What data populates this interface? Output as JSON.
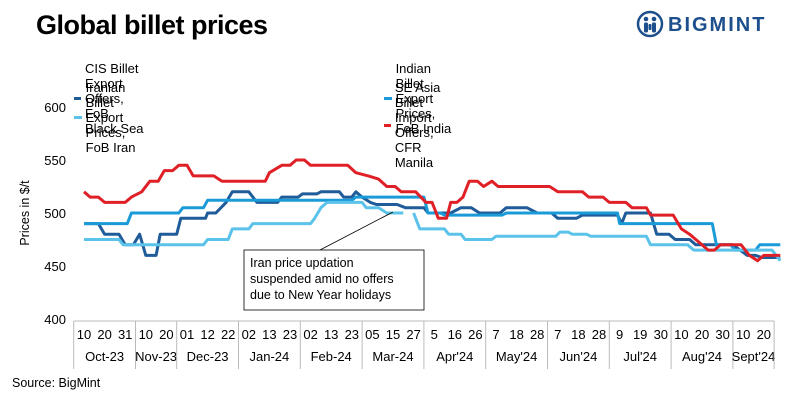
{
  "title": "Global billet prices",
  "brand": {
    "name": "BIGMINT",
    "icon": "bigmint-logo-icon",
    "color": "#1d4f8c"
  },
  "source": "Source: BigMint",
  "annotation": {
    "lines": [
      "Iran price updation",
      "suspended  amid no offers",
      "due to New Year holidays"
    ]
  },
  "chart_data": {
    "type": "line",
    "title": "Global billet prices",
    "ylabel": "Prices in $/t",
    "ylim": [
      400,
      600
    ],
    "yticks": [
      400,
      450,
      500,
      550,
      600
    ],
    "grid": false,
    "legend_position": "top",
    "x_tick_labels": [
      "10",
      "20",
      "31",
      "10",
      "20",
      "01",
      "12",
      "22",
      "02",
      "13",
      "23",
      "02",
      "13",
      "23",
      "05",
      "15",
      "27",
      "5",
      "16",
      "26",
      "7",
      "18",
      "28",
      "7",
      "18",
      "28",
      "9",
      "19",
      "30",
      "10",
      "20",
      "30",
      "10",
      "20"
    ],
    "months": [
      {
        "label": "Oct-23",
        "from": 0,
        "to": 3
      },
      {
        "label": "Nov-23",
        "from": 3,
        "to": 5
      },
      {
        "label": "Dec-23",
        "from": 5,
        "to": 8
      },
      {
        "label": "Jan-24",
        "from": 8,
        "to": 11
      },
      {
        "label": "Feb-24",
        "from": 11,
        "to": 14
      },
      {
        "label": "Mar-24",
        "from": 14,
        "to": 17
      },
      {
        "label": "Apr'24",
        "from": 17,
        "to": 20
      },
      {
        "label": "May'24",
        "from": 20,
        "to": 23
      },
      {
        "label": "Jun'24",
        "from": 23,
        "to": 26
      },
      {
        "label": "Jul'24",
        "from": 26,
        "to": 29
      },
      {
        "label": "Aug'24",
        "from": 29,
        "to": 32
      },
      {
        "label": "Sept'24",
        "from": 32,
        "to": 34
      }
    ],
    "series": [
      {
        "name": "CIS Billet Export Offers, FoB Black Sea",
        "color": "#1f5c99",
        "points": [
          [
            0,
            490
          ],
          [
            0.7,
            490
          ],
          [
            1,
            480
          ],
          [
            1.7,
            480
          ],
          [
            2,
            470
          ],
          [
            2.4,
            470
          ],
          [
            2.7,
            480
          ],
          [
            3,
            460
          ],
          [
            3.5,
            460
          ],
          [
            3.7,
            480
          ],
          [
            4.5,
            480
          ],
          [
            4.7,
            495
          ],
          [
            5.9,
            495
          ],
          [
            6,
            500
          ],
          [
            6.4,
            500
          ],
          [
            6.9,
            510
          ],
          [
            7.2,
            520
          ],
          [
            8,
            520
          ],
          [
            8.4,
            510
          ],
          [
            9.4,
            510
          ],
          [
            9.6,
            515
          ],
          [
            10.4,
            515
          ],
          [
            10.6,
            518
          ],
          [
            11.3,
            518
          ],
          [
            11.5,
            520
          ],
          [
            12.4,
            520
          ],
          [
            12.6,
            515
          ],
          [
            13,
            515
          ],
          [
            13.2,
            520
          ],
          [
            13.5,
            515
          ],
          [
            13.9,
            510
          ],
          [
            14.2,
            508
          ],
          [
            15.2,
            508
          ],
          [
            15.6,
            505
          ],
          [
            16.5,
            505
          ],
          [
            16.7,
            500
          ],
          [
            17.5,
            500
          ],
          [
            17.8,
            500
          ],
          [
            18.3,
            505
          ],
          [
            18.8,
            505
          ],
          [
            19.2,
            500
          ],
          [
            20.2,
            500
          ],
          [
            20.5,
            505
          ],
          [
            21.5,
            505
          ],
          [
            22,
            500
          ],
          [
            22.7,
            500
          ],
          [
            23,
            495
          ],
          [
            23.9,
            495
          ],
          [
            24.2,
            498
          ],
          [
            25.9,
            498
          ],
          [
            26.1,
            490
          ],
          [
            26.3,
            500
          ],
          [
            27.5,
            500
          ],
          [
            27.8,
            480
          ],
          [
            28.4,
            480
          ],
          [
            28.7,
            475
          ],
          [
            29.4,
            475
          ],
          [
            29.7,
            470
          ],
          [
            31.5,
            470
          ],
          [
            32.2,
            460
          ],
          [
            32.6,
            460
          ],
          [
            32.9,
            458
          ],
          [
            33.8,
            458
          ]
        ]
      },
      {
        "name": "Indian Billet Export Prices, FoB India",
        "color": "#1a9bd7",
        "points": [
          [
            0,
            490
          ],
          [
            2,
            490
          ],
          [
            2.1,
            490
          ],
          [
            2.3,
            500
          ],
          [
            4.6,
            500
          ],
          [
            4.8,
            505
          ],
          [
            5.8,
            505
          ],
          [
            6,
            512
          ],
          [
            13,
            512
          ],
          [
            13.2,
            515
          ],
          [
            16.5,
            515
          ],
          [
            16.7,
            500
          ],
          [
            17.3,
            500
          ],
          [
            17.5,
            498
          ],
          [
            20.3,
            498
          ],
          [
            20.5,
            500
          ],
          [
            23.5,
            500
          ],
          [
            23.7,
            500
          ],
          [
            25.9,
            500
          ],
          [
            26,
            490
          ],
          [
            29.7,
            490
          ],
          [
            29.9,
            490
          ],
          [
            30.5,
            490
          ],
          [
            30.7,
            470
          ],
          [
            31.4,
            470
          ],
          [
            31.6,
            465
          ],
          [
            32.6,
            465
          ],
          [
            32.8,
            470
          ],
          [
            33.8,
            470
          ]
        ]
      },
      {
        "name": "Iranian Billet Export Prices, FoB Iran",
        "color": "#5bc3ea",
        "points": [
          [
            0,
            475
          ],
          [
            1.7,
            475
          ],
          [
            1.9,
            470
          ],
          [
            4.5,
            470
          ],
          [
            5.8,
            470
          ],
          [
            6,
            475
          ],
          [
            7,
            475
          ],
          [
            7.2,
            485
          ],
          [
            8,
            485
          ],
          [
            8.2,
            490
          ],
          [
            11,
            490
          ],
          [
            11.2,
            495
          ],
          [
            11.5,
            505
          ],
          [
            11.8,
            510
          ],
          [
            13.5,
            510
          ],
          [
            13.7,
            505
          ],
          [
            14.3,
            505
          ],
          [
            14.7,
            500
          ],
          [
            15.5,
            500
          ],
          [
            15.5,
            null
          ],
          [
            16,
            null
          ],
          [
            16,
            500
          ],
          [
            16.3,
            485
          ],
          [
            17.5,
            485
          ],
          [
            17.7,
            480
          ],
          [
            18.3,
            480
          ],
          [
            18.5,
            475
          ],
          [
            19.8,
            475
          ],
          [
            20,
            478
          ],
          [
            22.9,
            478
          ],
          [
            23.1,
            482
          ],
          [
            23.5,
            482
          ],
          [
            23.7,
            480
          ],
          [
            24.4,
            480
          ],
          [
            24.6,
            478
          ],
          [
            27.3,
            478
          ],
          [
            27.5,
            470
          ],
          [
            29.3,
            470
          ],
          [
            29.6,
            465
          ],
          [
            31.8,
            465
          ],
          [
            32.1,
            465
          ],
          [
            33.4,
            465
          ],
          [
            33.8,
            455
          ]
        ]
      },
      {
        "name": "SE Asia Billet Import Offers, CFR Manila",
        "color": "#e02027",
        "points": [
          [
            0,
            520
          ],
          [
            0.3,
            515
          ],
          [
            0.7,
            515
          ],
          [
            1,
            510
          ],
          [
            2,
            510
          ],
          [
            2.3,
            515
          ],
          [
            2.8,
            520
          ],
          [
            3.2,
            530
          ],
          [
            3.6,
            530
          ],
          [
            3.9,
            540
          ],
          [
            4.3,
            540
          ],
          [
            4.6,
            545
          ],
          [
            5,
            545
          ],
          [
            5.3,
            535
          ],
          [
            5.6,
            535
          ],
          [
            5.8,
            535
          ],
          [
            6.3,
            535
          ],
          [
            6.7,
            530
          ],
          [
            8.8,
            530
          ],
          [
            9,
            538
          ],
          [
            9.6,
            545
          ],
          [
            10,
            545
          ],
          [
            10.3,
            550
          ],
          [
            10.7,
            550
          ],
          [
            11,
            545
          ],
          [
            12.8,
            545
          ],
          [
            13.2,
            538
          ],
          [
            13.8,
            535
          ],
          [
            14.3,
            532
          ],
          [
            14.7,
            525
          ],
          [
            15.1,
            525
          ],
          [
            15.4,
            520
          ],
          [
            16.1,
            520
          ],
          [
            16.6,
            510
          ],
          [
            16.9,
            510
          ],
          [
            17.2,
            495
          ],
          [
            17.6,
            495
          ],
          [
            17.8,
            510
          ],
          [
            18.1,
            510
          ],
          [
            18.4,
            515
          ],
          [
            18.7,
            530
          ],
          [
            19.1,
            530
          ],
          [
            19.4,
            525
          ],
          [
            19.8,
            530
          ],
          [
            20.1,
            525
          ],
          [
            22.6,
            525
          ],
          [
            23,
            520
          ],
          [
            24.2,
            520
          ],
          [
            24.5,
            515
          ],
          [
            25.2,
            515
          ],
          [
            25.5,
            510
          ],
          [
            26.3,
            510
          ],
          [
            26.6,
            505
          ],
          [
            27.3,
            505
          ],
          [
            27.5,
            498
          ],
          [
            28.6,
            498
          ],
          [
            29,
            485
          ],
          [
            29.4,
            480
          ],
          [
            29.7,
            475
          ],
          [
            30,
            470
          ],
          [
            30.3,
            465
          ],
          [
            30.6,
            465
          ],
          [
            30.9,
            470
          ],
          [
            31.5,
            470
          ],
          [
            31.9,
            470
          ],
          [
            32.3,
            460
          ],
          [
            32.7,
            455
          ],
          [
            33,
            460
          ],
          [
            33.8,
            460
          ]
        ]
      }
    ]
  }
}
